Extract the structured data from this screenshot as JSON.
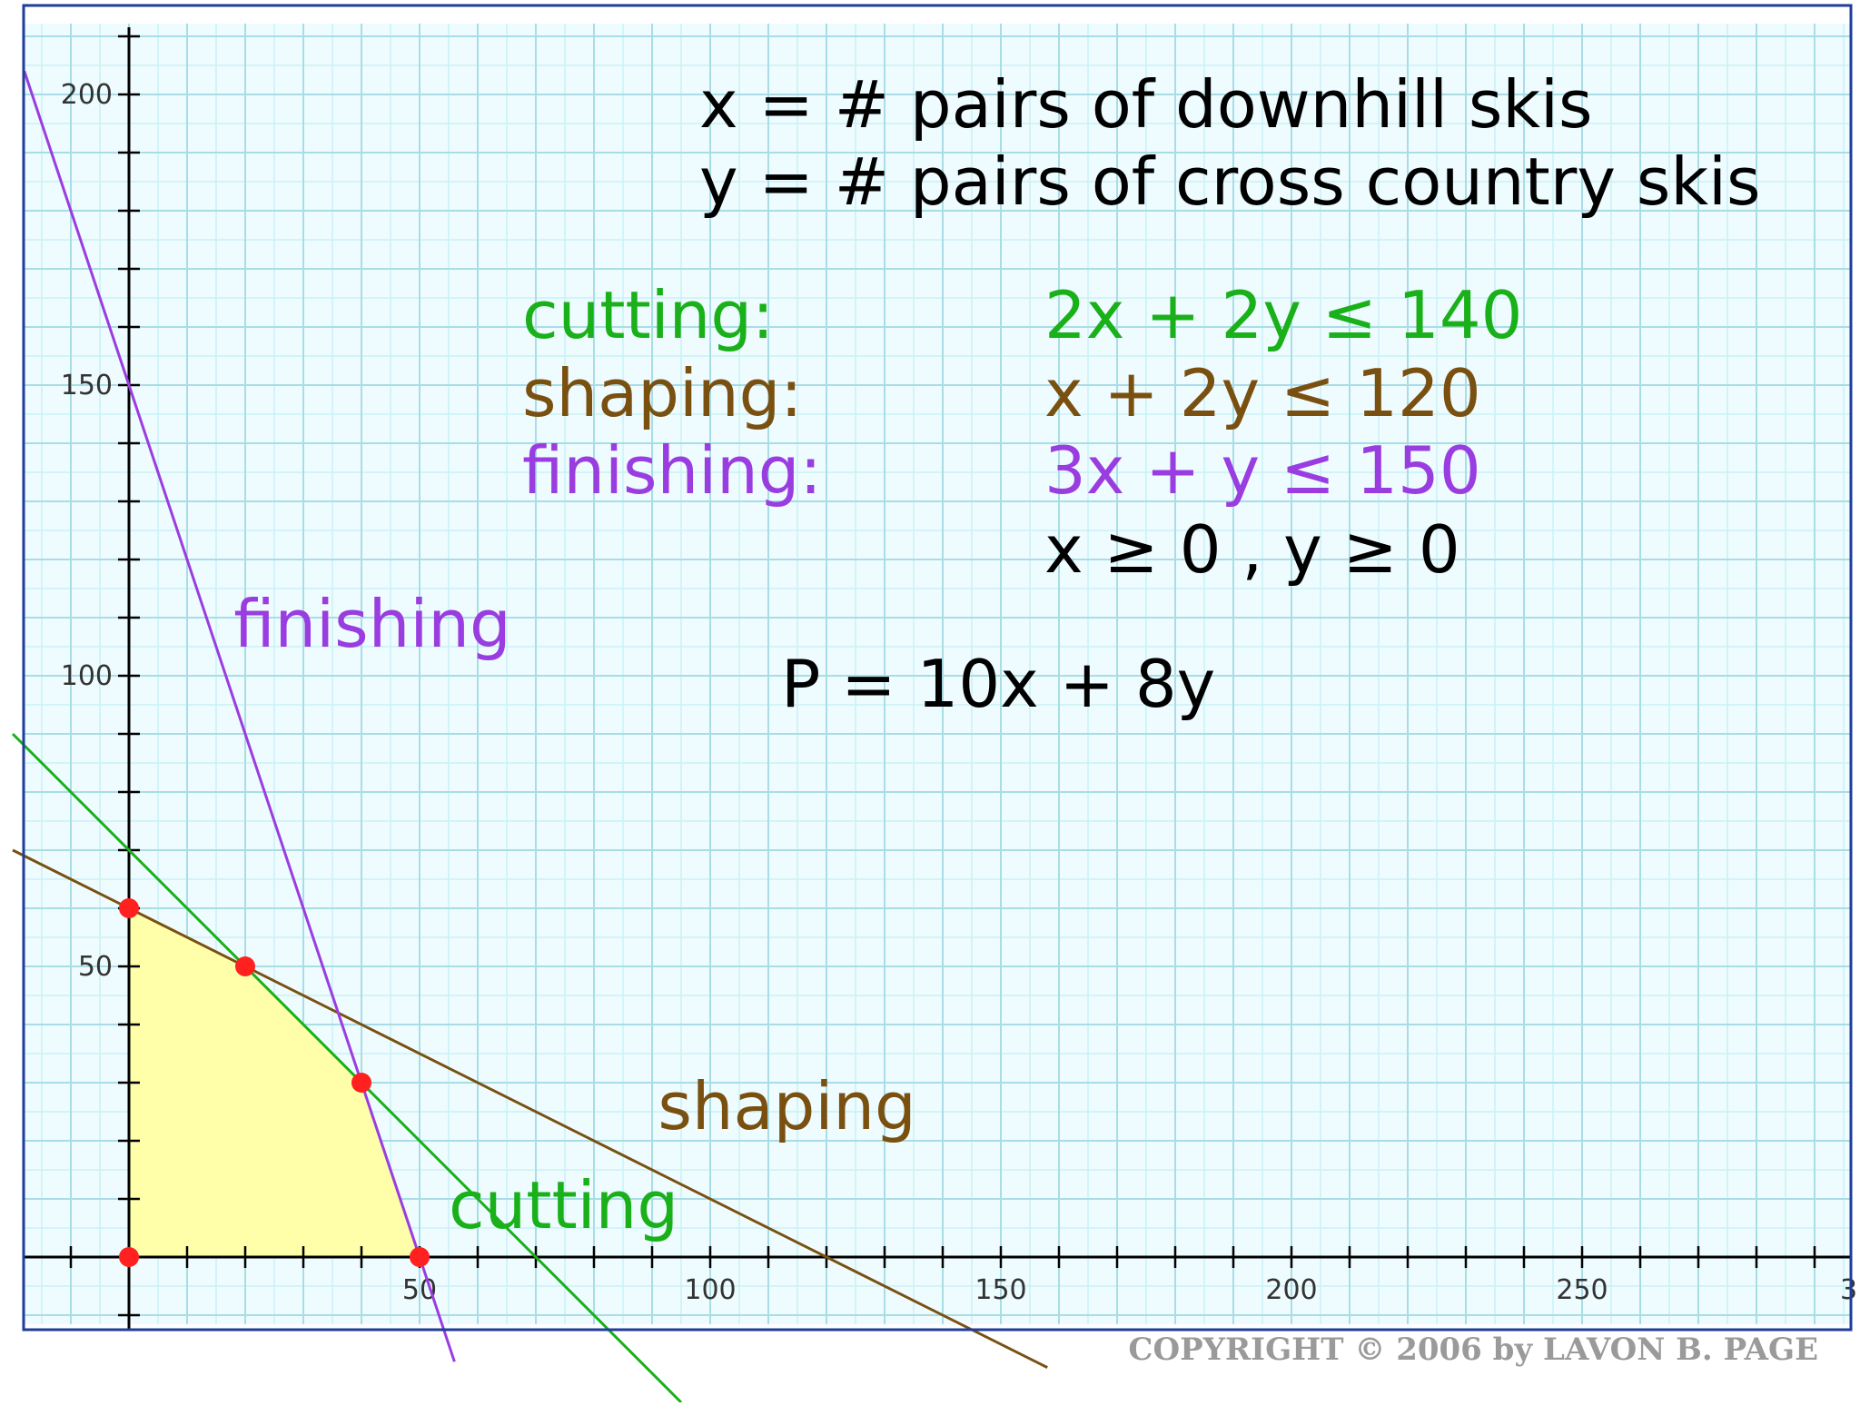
{
  "header": {
    "line1": "x = # pairs of downhill skis",
    "line2": "y = # pairs of cross country skis"
  },
  "constraints": [
    {
      "name": "cutting:",
      "expr": "2x + 2y ≤ 140",
      "color": "#1ab01a"
    },
    {
      "name": "shaping:",
      "expr": "x + 2y ≤ 120",
      "color": "#7a5010"
    },
    {
      "name": "finishing:",
      "expr": "3x + y ≤ 150",
      "color": "#9a3de0"
    },
    {
      "name": "",
      "expr": "x ≥ 0 , y ≥ 0",
      "color": "#000000"
    }
  ],
  "objective": "P = 10x + 8y",
  "copyright": "COPYRIGHT © 2006 by LAVON B. PAGE",
  "chart_data": {
    "type": "line",
    "xlim": [
      -18,
      296
    ],
    "ylim": [
      -12,
      210
    ],
    "x_ticks": [
      "50",
      "100",
      "150",
      "200",
      "250"
    ],
    "x_tick_values": [
      50,
      100,
      150,
      200,
      250
    ],
    "x_tick_partial": "3",
    "y_ticks": [
      "50",
      "100",
      "150",
      "200"
    ],
    "y_tick_values": [
      50,
      100,
      150,
      200
    ],
    "grid": true,
    "minor_step": 5,
    "major_step": 10,
    "series": [
      {
        "name": "cutting",
        "equation": "2x + 2y = 140",
        "points": [
          [
            -20,
            90
          ],
          [
            95,
            -25
          ]
        ],
        "color": "#1ab01a",
        "label_at": [
          55,
          5
        ]
      },
      {
        "name": "shaping",
        "equation": "x + 2y = 120",
        "points": [
          [
            -20,
            70
          ],
          [
            158,
            -19
          ]
        ],
        "color": "#7a5010",
        "label_at": [
          91,
          22
        ]
      },
      {
        "name": "finishing",
        "equation": "3x + y = 150",
        "points": [
          [
            -18,
            204
          ],
          [
            56,
            -18
          ]
        ],
        "color": "#9a3de0",
        "label_at": [
          18,
          105
        ]
      }
    ],
    "feasible_region": [
      [
        0,
        0
      ],
      [
        0,
        60
      ],
      [
        20,
        50
      ],
      [
        40,
        30
      ],
      [
        50,
        0
      ]
    ],
    "region_color": "#ffffaa",
    "vertices": [
      [
        0,
        0
      ],
      [
        0,
        60
      ],
      [
        20,
        50
      ],
      [
        40,
        30
      ],
      [
        50,
        0
      ]
    ],
    "vertex_color": "#ff2020"
  }
}
